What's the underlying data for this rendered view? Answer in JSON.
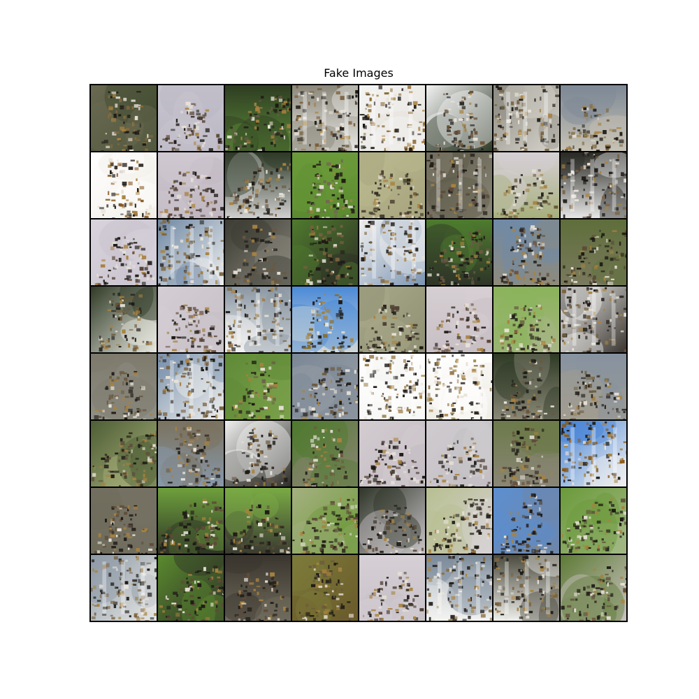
{
  "figure": {
    "title": "Fake Images"
  },
  "grid": {
    "rows": 8,
    "cols": 8,
    "border_color": "#000000",
    "tiles": [
      {
        "bg": "#6b6a52",
        "bg2": "#3f4a2e",
        "fg": "#8a6a3c",
        "motif": "upright"
      },
      {
        "bg": "#c9c6cf",
        "bg2": "#b9b6c4",
        "fg": "#5e4a3a",
        "motif": "pyramid"
      },
      {
        "bg": "#2e3d22",
        "bg2": "#5d8a3a",
        "fg": "#6a5a45",
        "motif": "diagonal"
      },
      {
        "bg": "#8a877a",
        "bg2": "#e8e8e4",
        "fg": "#7a5f3c",
        "motif": "bars"
      },
      {
        "bg": "#f4f4f4",
        "bg2": "#e6e3dc",
        "fg": "#8a6a34",
        "motif": "bars"
      },
      {
        "bg": "#f2f2f2",
        "bg2": "#2f3a28",
        "fg": "#6a5038",
        "motif": "upright"
      },
      {
        "bg": "#8e8c82",
        "bg2": "#d6d4cc",
        "fg": "#75603f",
        "motif": "bars"
      },
      {
        "bg": "#7f8a96",
        "bg2": "#c7c2b4",
        "fg": "#7d6a44",
        "motif": "pyramid"
      },
      {
        "bg": "#ffffff",
        "bg2": "#f2efe8",
        "fg": "#8a5a22",
        "motif": "upright"
      },
      {
        "bg": "#cfc8d0",
        "bg2": "#bfb6c0",
        "fg": "#5a4537",
        "motif": "pyramid"
      },
      {
        "bg": "#2f3a27",
        "bg2": "#cfcfcf",
        "fg": "#6a5640",
        "motif": "diagonal"
      },
      {
        "bg": "#6b9a3a",
        "bg2": "#5b8a30",
        "fg": "#6e6a50",
        "motif": "upright"
      },
      {
        "bg": "#b9b88f",
        "bg2": "#a7a47d",
        "fg": "#4f4233",
        "motif": "pyramid"
      },
      {
        "bg": "#5d5a4a",
        "bg2": "#8b8778",
        "fg": "#5e4a3a",
        "motif": "bars"
      },
      {
        "bg": "#d4cfd3",
        "bg2": "#a7b07c",
        "fg": "#6b5a3a",
        "motif": "pyramid"
      },
      {
        "bg": "#2a2a25",
        "bg2": "#e6e6e6",
        "fg": "#7a6245",
        "motif": "bars"
      },
      {
        "bg": "#d8d3dc",
        "bg2": "#c8c2cc",
        "fg": "#5a4436",
        "motif": "pyramid"
      },
      {
        "bg": "#6f88a4",
        "bg2": "#efefef",
        "fg": "#7c6644",
        "motif": "bars"
      },
      {
        "bg": "#3b3b33",
        "bg2": "#8a877c",
        "fg": "#6a5843",
        "motif": "upright"
      },
      {
        "bg": "#4f7a2e",
        "bg2": "#2d2f25",
        "fg": "#7a6040",
        "motif": "upright"
      },
      {
        "bg": "#f0f0f0",
        "bg2": "#7c95b3",
        "fg": "#7a5e3a",
        "motif": "bars"
      },
      {
        "bg": "#4e7c2e",
        "bg2": "#2f3528",
        "fg": "#6a5844",
        "motif": "diagonal"
      },
      {
        "bg": "#6f8aa8",
        "bg2": "#8e8a7c",
        "fg": "#6a5540",
        "motif": "upright"
      },
      {
        "bg": "#5e6e3a",
        "bg2": "#7a7a5e",
        "fg": "#5a4a36",
        "motif": "diagonal"
      },
      {
        "bg": "#2f3a25",
        "bg2": "#e8e8e0",
        "fg": "#6a5838",
        "motif": "upright"
      },
      {
        "bg": "#d4ced4",
        "bg2": "#c6bfc6",
        "fg": "#5d4638",
        "motif": "pyramid"
      },
      {
        "bg": "#8a96a2",
        "bg2": "#f2f2f2",
        "fg": "#7e6642",
        "motif": "bars"
      },
      {
        "bg": "#4a8ad8",
        "bg2": "#cfd6d6",
        "fg": "#8a6a22",
        "motif": "upright"
      },
      {
        "bg": "#a8a88a",
        "bg2": "#8f8f73",
        "fg": "#4d4033",
        "motif": "pyramid"
      },
      {
        "bg": "#d6cfd2",
        "bg2": "#c7bfc4",
        "fg": "#5d4538",
        "motif": "pyramid"
      },
      {
        "bg": "#8ab35a",
        "bg2": "#a7b584",
        "fg": "#5a4a38",
        "motif": "pyramid"
      },
      {
        "bg": "#f0f0ee",
        "bg2": "#3a3530",
        "fg": "#76603e",
        "motif": "bars"
      },
      {
        "bg": "#7e7a6c",
        "bg2": "#8e8f86",
        "fg": "#6a5a40",
        "motif": "pyramid"
      },
      {
        "bg": "#7c93ad",
        "bg2": "#efefee",
        "fg": "#7a6240",
        "motif": "bars"
      },
      {
        "bg": "#5f8a37",
        "bg2": "#7aa04a",
        "fg": "#6c6448",
        "motif": "upright"
      },
      {
        "bg": "#7a8796",
        "bg2": "#9aa0a6",
        "fg": "#6c5a3e",
        "motif": "diagonal"
      },
      {
        "bg": "#ffffff",
        "bg2": "#f2f2f0",
        "fg": "#9a7d4c",
        "motif": "bars"
      },
      {
        "bg": "#ffffff",
        "bg2": "#f0ede6",
        "fg": "#8d7448",
        "motif": "bars"
      },
      {
        "bg": "#2e3a25",
        "bg2": "#8a8877",
        "fg": "#6a5640",
        "motif": "upright"
      },
      {
        "bg": "#8793a0",
        "bg2": "#a29d90",
        "fg": "#6e5c40",
        "motif": "pyramid"
      },
      {
        "bg": "#4e5e35",
        "bg2": "#a7b07a",
        "fg": "#5e4d3b",
        "motif": "diagonal"
      },
      {
        "bg": "#7a725e",
        "bg2": "#8898ab",
        "fg": "#6a5840",
        "motif": "upright"
      },
      {
        "bg": "#efefef",
        "bg2": "#2f2e28",
        "fg": "#6a5640",
        "motif": "upright"
      },
      {
        "bg": "#4f7a2f",
        "bg2": "#8b8574",
        "fg": "#6c5a3c",
        "motif": "upright"
      },
      {
        "bg": "#d3ccd1",
        "bg2": "#c2bac0",
        "fg": "#4f3e33",
        "motif": "pyramid"
      },
      {
        "bg": "#cfcbcf",
        "bg2": "#c2bec3",
        "fg": "#5a4a3e",
        "motif": "pyramid"
      },
      {
        "bg": "#6c7a4a",
        "bg2": "#8a8676",
        "fg": "#5f4c38",
        "motif": "upright"
      },
      {
        "bg": "#4a86d6",
        "bg2": "#f0f0f0",
        "fg": "#8a5a1a",
        "motif": "bars"
      },
      {
        "bg": "#757264",
        "bg2": "#6e6b5b",
        "fg": "#5f4d3a",
        "motif": "pyramid"
      },
      {
        "bg": "#6ea03c",
        "bg2": "#2f3527",
        "fg": "#5e4a36",
        "motif": "diagonal"
      },
      {
        "bg": "#7aab45",
        "bg2": "#3a3a30",
        "fg": "#5c4a36",
        "motif": "pyramid"
      },
      {
        "bg": "#a5b080",
        "bg2": "#6c9a3a",
        "fg": "#5e4c38",
        "motif": "diagonal"
      },
      {
        "bg": "#2f3528",
        "bg2": "#c9c4c8",
        "fg": "#5d4b3a",
        "motif": "pyramid"
      },
      {
        "bg": "#b7bf90",
        "bg2": "#d7d2d5",
        "fg": "#3a3128",
        "motif": "diagonal"
      },
      {
        "bg": "#5c8fd0",
        "bg2": "#6f86a8",
        "fg": "#5a4a38",
        "motif": "upright"
      },
      {
        "bg": "#6a9a3a",
        "bg2": "#a2b784",
        "fg": "#5a4a38",
        "motif": "diagonal"
      },
      {
        "bg": "#8d9aa6",
        "bg2": "#e6e6e4",
        "fg": "#7a6442",
        "motif": "bars"
      },
      {
        "bg": "#5a8a2e",
        "bg2": "#2f3328",
        "fg": "#5e4a38",
        "motif": "diagonal"
      },
      {
        "bg": "#3a362e",
        "bg2": "#6f6a5c",
        "fg": "#5e4b3a",
        "motif": "pyramid"
      },
      {
        "bg": "#7c7a3a",
        "bg2": "#6a5a2a",
        "fg": "#6a5a3c",
        "motif": "upright"
      },
      {
        "bg": "#d6d0d6",
        "bg2": "#c8c2c8",
        "fg": "#4e3e33",
        "motif": "pyramid"
      },
      {
        "bg": "#7b8a9a",
        "bg2": "#f4f4f2",
        "fg": "#8a6a38",
        "motif": "bars"
      },
      {
        "bg": "#4a4a3e",
        "bg2": "#eeeeea",
        "fg": "#7a6444",
        "motif": "bars"
      },
      {
        "bg": "#5d7a35",
        "bg2": "#c9c2c0",
        "fg": "#5d4b3a",
        "motif": "diagonal"
      }
    ]
  }
}
